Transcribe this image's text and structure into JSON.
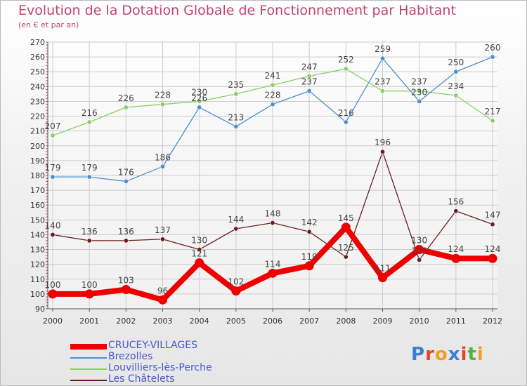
{
  "chart_data": {
    "type": "line",
    "title": "Evolution de la Dotation Globale de Fonctionnement par Habitant",
    "subtitle": "(en € et par an)",
    "x": [
      "2000",
      "2001",
      "2002",
      "2003",
      "2004",
      "2005",
      "2006",
      "2007",
      "2008",
      "2009",
      "2010",
      "2011",
      "2012"
    ],
    "ylim": [
      90,
      270
    ],
    "yticks": [
      90,
      100,
      110,
      120,
      130,
      140,
      150,
      160,
      170,
      180,
      190,
      200,
      210,
      220,
      230,
      240,
      250,
      260,
      270
    ],
    "grid": true,
    "legend_placement": "bottom-left",
    "series": [
      {
        "name": "CRUCEY-VILLAGES",
        "color": "#ee0000",
        "values": [
          100,
          100,
          103,
          96,
          121,
          102,
          114,
          119,
          145,
          111,
          130,
          124,
          124
        ]
      },
      {
        "name": "Brezolles",
        "color": "#4b8fd1",
        "values": [
          179,
          179,
          176,
          186,
          226,
          213,
          228,
          237,
          216,
          259,
          230,
          250,
          260
        ]
      },
      {
        "name": "Louvilliers-lès-Perche",
        "color": "#88d060",
        "values": [
          207,
          216,
          226,
          228,
          230,
          235,
          241,
          247,
          252,
          237,
          237,
          234,
          217
        ]
      },
      {
        "name": "Les Châtelets",
        "color": "#6b1e22",
        "values": [
          140,
          136,
          136,
          137,
          130,
          144,
          148,
          142,
          125,
          196,
          123,
          156,
          147
        ]
      }
    ],
    "point_labels": [
      [
        "100",
        "100",
        "103",
        "96",
        "121",
        "102",
        "114",
        "119",
        "145",
        "111",
        "130",
        "124",
        "124"
      ],
      [
        "179",
        "179",
        "176",
        "186",
        "226",
        "213",
        "228",
        "237",
        "216",
        "259",
        "230",
        "250",
        "260"
      ],
      [
        "207",
        "216",
        "226",
        "228",
        "230",
        "235",
        "241",
        "247",
        "252",
        "237",
        "237",
        "234",
        "217"
      ],
      [
        "140",
        "136",
        "136",
        "137",
        "130",
        "144",
        "148",
        "142",
        "125",
        "196",
        "123",
        "156",
        "147"
      ]
    ]
  },
  "logo": {
    "text": "Proxiti",
    "colors": [
      "#3a7fd5",
      "#e8442a",
      "#f0a020",
      "#3a7fd5",
      "#e8442a",
      "#58b040",
      "#f0a020"
    ]
  }
}
